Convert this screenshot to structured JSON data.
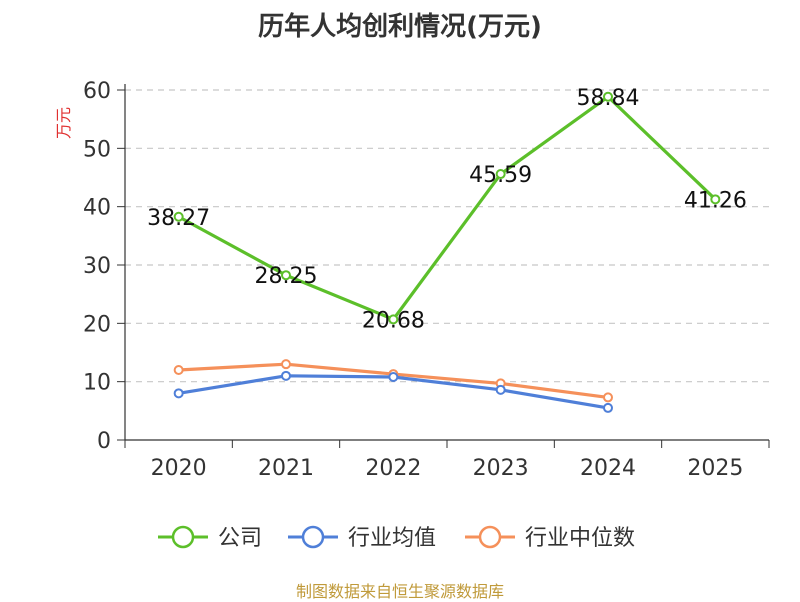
{
  "chart_data": {
    "type": "line",
    "title": "历年人均创利情况(万元)",
    "ylabel": "万元",
    "xlabel": "",
    "categories": [
      "2020",
      "2021",
      "2022",
      "2023",
      "2024",
      "2025"
    ],
    "ylim": [
      0,
      60
    ],
    "yticks": [
      0,
      10,
      20,
      30,
      40,
      50,
      60
    ],
    "grid": true,
    "legend_position": "bottom",
    "series": [
      {
        "name": "公司",
        "color": "#5cbf2a",
        "values": [
          38.27,
          28.25,
          20.68,
          45.59,
          58.84,
          41.26
        ],
        "labels": [
          "38.27",
          "28.25",
          "20.68",
          "45.59",
          "58.84",
          "41.26"
        ]
      },
      {
        "name": "行业均值",
        "color": "#4f7fd8",
        "values": [
          8.0,
          11.0,
          10.8,
          8.6,
          5.5,
          null
        ]
      },
      {
        "name": "行业中位数",
        "color": "#f5905a",
        "values": [
          12.0,
          13.0,
          11.3,
          9.7,
          7.3,
          null
        ]
      }
    ]
  },
  "footer": {
    "source": "制图数据来自恒生聚源数据库"
  }
}
